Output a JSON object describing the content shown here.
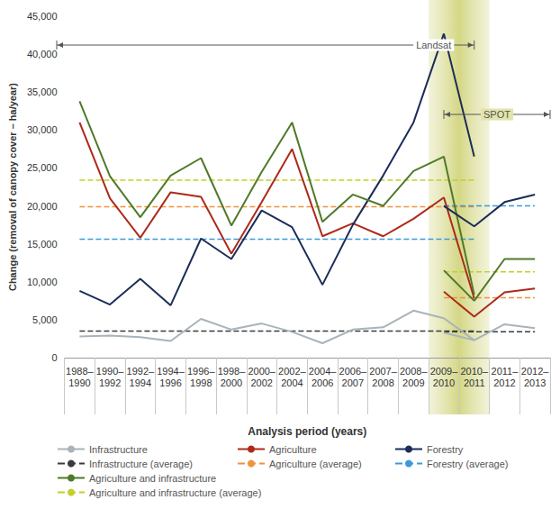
{
  "chart_data": {
    "type": "line",
    "marker": "none",
    "grid": false,
    "x_label": "Analysis period (years)",
    "y_label": "Change (removal of canopy cover – ha/year)",
    "categories": [
      "1988–1990",
      "1990–1992",
      "1992–1994",
      "1994–1996",
      "1996–1998",
      "1998–2000",
      "2000–2002",
      "2002–2004",
      "2004–2006",
      "2006–2007",
      "2007–2008",
      "2008–2009",
      "2009–2010",
      "2010–2011",
      "2011–2012",
      "2012–2013"
    ],
    "ylim": [
      0,
      45000
    ],
    "yticks": [
      0,
      {
        "value": 5000,
        "label": "5,000"
      },
      {
        "value": 10000,
        "label": "10,000"
      },
      {
        "value": 15000,
        "label": "15,000"
      },
      {
        "value": 20000,
        "label": "20,000"
      },
      {
        "value": 25000,
        "label": "25,000"
      },
      {
        "value": 30000,
        "label": "30,000"
      },
      {
        "value": 35000,
        "label": "35,000"
      },
      {
        "value": 40000,
        "label": "40,000"
      },
      {
        "value": 45000,
        "label": "45,000"
      }
    ],
    "highlight": [
      "2009–2010",
      "2010–2011"
    ],
    "annotations": [
      {
        "text": "Landsat",
        "from": "1988–1990",
        "to": "2010–2011"
      },
      {
        "text": "SPOT",
        "from": "2009–2010",
        "to": "2012–2013"
      }
    ],
    "series": [
      {
        "name": "Infrastructure",
        "color": "#a9b3b9",
        "line_style": "solid",
        "values": [
          2800,
          2900,
          2700,
          2200,
          5100,
          3700,
          4500,
          3400,
          1900,
          3700,
          4000,
          6200,
          5200,
          2300,
          null,
          null
        ]
      },
      {
        "name": "Infrastructure (average)",
        "color": "#3b3b3b",
        "line_style": "dashed",
        "values": [
          3500,
          3500,
          3500,
          3500,
          3500,
          3500,
          3500,
          3500,
          3500,
          3500,
          3500,
          3500,
          3500,
          3500,
          null,
          null
        ]
      },
      {
        "name": "Agriculture",
        "color": "#ad2a1a",
        "line_style": "solid",
        "values": [
          31000,
          21000,
          15800,
          21800,
          21200,
          13700,
          20500,
          27500,
          16000,
          17700,
          16000,
          18300,
          21100,
          7800,
          null,
          null
        ]
      },
      {
        "name": "Agriculture (average)",
        "color": "#f0923c",
        "line_style": "dashed",
        "values": [
          19900,
          19900,
          19900,
          19900,
          19900,
          19900,
          19900,
          19900,
          19900,
          19900,
          19900,
          19900,
          19900,
          19900,
          null,
          null
        ]
      },
      {
        "name": "Forestry",
        "color": "#1b2d58",
        "line_style": "solid",
        "values": [
          8800,
          7000,
          10400,
          6900,
          15700,
          13000,
          19400,
          17200,
          9600,
          17500,
          24000,
          31000,
          42700,
          26500,
          null,
          null
        ]
      },
      {
        "name": "Forestry (average)",
        "color": "#3a9ad9",
        "line_style": "dashed",
        "values": [
          15600,
          15600,
          15600,
          15600,
          15600,
          15600,
          15600,
          15600,
          15600,
          15600,
          15600,
          15600,
          15600,
          15600,
          null,
          null
        ]
      },
      {
        "name": "Agriculture and infrastructure",
        "color": "#4f7a28",
        "line_style": "solid",
        "values": [
          33800,
          23900,
          18500,
          24000,
          26300,
          17400,
          24500,
          31000,
          17900,
          21500,
          20000,
          24600,
          26500,
          8300,
          null,
          null
        ]
      },
      {
        "name": "Agriculture and infrastructure (average)",
        "color": "#c3cf2a",
        "line_style": "dashed",
        "values": [
          23400,
          23400,
          23400,
          23400,
          23400,
          23400,
          23400,
          23400,
          23400,
          23400,
          23400,
          23400,
          23400,
          23400,
          null,
          null
        ]
      },
      {
        "name": "Infrastructure",
        "color": "#a9b3b9",
        "line_style": "solid",
        "values": [
          null,
          null,
          null,
          null,
          null,
          null,
          null,
          null,
          null,
          null,
          null,
          null,
          3300,
          2300,
          4400,
          3900
        ]
      },
      {
        "name": "Infrastructure (average)",
        "color": "#3b3b3b",
        "line_style": "dashed",
        "values": [
          null,
          null,
          null,
          null,
          null,
          null,
          null,
          null,
          null,
          null,
          null,
          null,
          3400,
          3400,
          3400,
          3400
        ]
      },
      {
        "name": "Agriculture",
        "color": "#ad2a1a",
        "line_style": "solid",
        "values": [
          null,
          null,
          null,
          null,
          null,
          null,
          null,
          null,
          null,
          null,
          null,
          null,
          8700,
          5400,
          8600,
          9100
        ]
      },
      {
        "name": "Agriculture (average)",
        "color": "#f0923c",
        "line_style": "dashed",
        "values": [
          null,
          null,
          null,
          null,
          null,
          null,
          null,
          null,
          null,
          null,
          null,
          null,
          7900,
          7900,
          7900,
          7900
        ]
      },
      {
        "name": "Forestry",
        "color": "#1b2d58",
        "line_style": "solid",
        "values": [
          null,
          null,
          null,
          null,
          null,
          null,
          null,
          null,
          null,
          null,
          null,
          null,
          20000,
          17300,
          20500,
          21500
        ]
      },
      {
        "name": "Forestry (average)",
        "color": "#3a9ad9",
        "line_style": "dashed",
        "values": [
          null,
          null,
          null,
          null,
          null,
          null,
          null,
          null,
          null,
          null,
          null,
          null,
          20000,
          20000,
          20000,
          20000
        ]
      },
      {
        "name": "Agriculture and infrastructure",
        "color": "#4f7a28",
        "line_style": "solid",
        "values": [
          null,
          null,
          null,
          null,
          null,
          null,
          null,
          null,
          null,
          null,
          null,
          null,
          11500,
          7500,
          13000,
          13000
        ]
      },
      {
        "name": "Agriculture and infrastructure (average)",
        "color": "#c3cf2a",
        "line_style": "dashed",
        "values": [
          null,
          null,
          null,
          null,
          null,
          null,
          null,
          null,
          null,
          null,
          null,
          null,
          11300,
          11300,
          11300,
          11300
        ]
      }
    ]
  }
}
